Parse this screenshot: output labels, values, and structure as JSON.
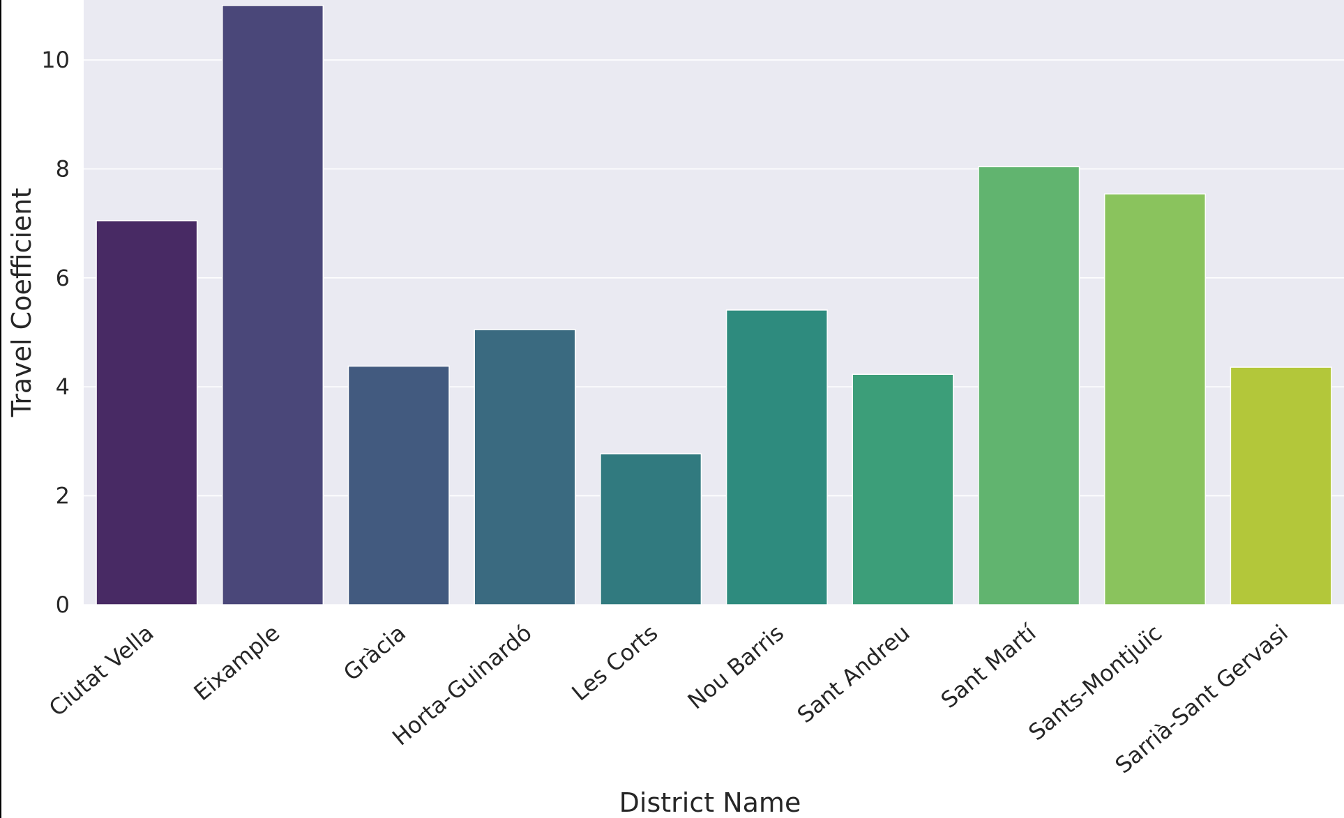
{
  "chart_data": {
    "type": "bar",
    "title": "",
    "xlabel": "District Name",
    "ylabel": "Travel Coefficient",
    "categories": [
      "Ciutat Vella",
      "Eixample",
      "Gràcia",
      "Horta-Guinardó",
      "Les Corts",
      "Nou Barris",
      "Sant Andreu",
      "Sant Martí",
      "Sants-Montjuïc",
      "Sarrià-Sant Gervasi"
    ],
    "values": [
      7.05,
      11.0,
      4.38,
      5.05,
      2.77,
      5.41,
      4.23,
      8.04,
      7.54,
      4.36
    ],
    "colors": [
      "#482a64",
      "#4a4779",
      "#425a7f",
      "#3a6a80",
      "#317a7f",
      "#2e8b7e",
      "#3c9e79",
      "#61b46f",
      "#8ac35d",
      "#b3c73a"
    ],
    "ylim": [
      0,
      11.1
    ],
    "yticks": [
      0,
      2,
      4,
      6,
      8,
      10
    ],
    "grid": true,
    "legend": "none",
    "background": "#eaeaf2",
    "gridColor": "#ffffff"
  }
}
